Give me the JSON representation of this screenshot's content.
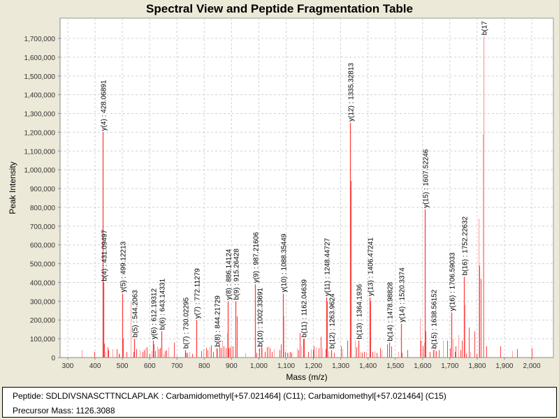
{
  "chart_data": {
    "type": "bar",
    "title": "Spectral View and Peptide Fragmentation Table",
    "xlabel": "Mass (m/z)",
    "ylabel": "Peak Intensity",
    "xlim": [
      270,
      2075
    ],
    "ylim": [
      0,
      1810000
    ],
    "grid": true,
    "legend": "none",
    "x_ticks": [
      300,
      400,
      500,
      600,
      700,
      800,
      900,
      1000,
      1100,
      1200,
      1300,
      1400,
      1500,
      1600,
      1700,
      1800,
      1900,
      2000
    ],
    "x_tick_labels": [
      "300",
      "400",
      "500",
      "600",
      "700",
      "800",
      "900",
      "1,000",
      "1,100",
      "1,200",
      "1,300",
      "1,400",
      "1,500",
      "1,600",
      "1,700",
      "1,800",
      "1,900",
      "2,000"
    ],
    "y_ticks": [
      0,
      100000,
      200000,
      300000,
      400000,
      500000,
      600000,
      700000,
      800000,
      900000,
      1000000,
      1100000,
      1200000,
      1300000,
      1400000,
      1500000,
      1600000,
      1700000
    ],
    "y_tick_labels": [
      "0",
      "100,000",
      "200,000",
      "300,000",
      "400,000",
      "500,000",
      "600,000",
      "700,000",
      "800,000",
      "900,000",
      "1,000,000",
      "1,100,000",
      "1,200,000",
      "1,300,000",
      "1,400,000",
      "1,500,000",
      "1,600,000",
      "1,700,000"
    ],
    "peak_color": "#ff4040",
    "peak_color_light": "#ffa0a0",
    "annotated_peaks": [
      {
        "ion": "y(4)",
        "mz": 428.06891,
        "intensity": 1200000,
        "label": "y(4) : 428.06891"
      },
      {
        "ion": "b(4)",
        "mz": 431.09497,
        "intensity": 400000,
        "label": "b(4) : 431.09497"
      },
      {
        "ion": "y(5)",
        "mz": 499.12213,
        "intensity": 340000,
        "label": "y(5) : 499.12213"
      },
      {
        "ion": "b(5)",
        "mz": 544.2063,
        "intensity": 100000,
        "label": "b(5) : 544.2063"
      },
      {
        "ion": "y(6)",
        "mz": 612.19312,
        "intensity": 90000,
        "label": "y(6) : 612.19312"
      },
      {
        "ion": "b(6)",
        "mz": 643.14331,
        "intensity": 140000,
        "label": "b(6) : 643.14331"
      },
      {
        "ion": "b(7)",
        "mz": 730.02295,
        "intensity": 40000,
        "label": "b(7) : 730.02295"
      },
      {
        "ion": "y(7)",
        "mz": 772.11279,
        "intensity": 200000,
        "label": "y(7) : 772.11279"
      },
      {
        "ion": "b(8)",
        "mz": 844.21729,
        "intensity": 50000,
        "label": "b(8) : 844.21729"
      },
      {
        "ion": "y(8)",
        "mz": 886.14124,
        "intensity": 300000,
        "label": "y(8) : 886.14124"
      },
      {
        "ion": "b(9)",
        "mz": 915.26428,
        "intensity": 300000,
        "label": "b(9) : 915.26428"
      },
      {
        "ion": "y(9)",
        "mz": 987.21606,
        "intensity": 390000,
        "label": "y(9) : 987.21606"
      },
      {
        "ion": "b(10)",
        "mz": 1002.33691,
        "intensity": 50000,
        "label": "b(10) : 1002.33691"
      },
      {
        "ion": "y(10)",
        "mz": 1088.35449,
        "intensity": 340000,
        "label": "y(10) : 1088.35449"
      },
      {
        "ion": "b(11)",
        "mz": 1162.04639,
        "intensity": 100000,
        "label": "b(11) : 1162.04639"
      },
      {
        "ion": "y(11)",
        "mz": 1248.44727,
        "intensity": 320000,
        "label": "y(11) : 1248.44727"
      },
      {
        "ion": "b(12)",
        "mz": 1263.9624,
        "intensity": 40000,
        "label": "b(12) : 1263.9624"
      },
      {
        "ion": "y(12)",
        "mz": 1335.32813,
        "intensity": 1250000,
        "label": "y(12) : 1335.32813"
      },
      {
        "ion": "b(13)",
        "mz": 1364.1936,
        "intensity": 90000,
        "label": "b(13) : 1364.1936"
      },
      {
        "ion": "y(13)",
        "mz": 1406.47241,
        "intensity": 320000,
        "label": "y(13) : 1406.47241"
      },
      {
        "ion": "b(14)",
        "mz": 1478.98828,
        "intensity": 80000,
        "label": "b(14) : 1478.98828"
      },
      {
        "ion": "y(14)",
        "mz": 1520.3374,
        "intensity": 180000,
        "label": "y(14) : 1520.3374"
      },
      {
        "ion": "y(15)",
        "mz": 1607.52246,
        "intensity": 790000,
        "label": "y(15) : 1607.52246"
      },
      {
        "ion": "b(15)",
        "mz": 1638.56152,
        "intensity": 40000,
        "label": "b(15) : 1638.56152"
      },
      {
        "ion": "y(16)",
        "mz": 1706.59033,
        "intensity": 240000,
        "label": "y(16) : 1706.59033"
      },
      {
        "ion": "b(16)",
        "mz": 1752.22632,
        "intensity": 430000,
        "label": "b(16) : 1752.22632"
      },
      {
        "ion": "b(17)",
        "mz": 1824.5,
        "intensity": 1710000,
        "label": "b(17"
      }
    ],
    "other_peaks": [
      {
        "mz": 352,
        "intensity": 40000
      },
      {
        "mz": 398,
        "intensity": 30000
      },
      {
        "mz": 433,
        "intensity": 75000
      },
      {
        "mz": 437,
        "intensity": 30000
      },
      {
        "mz": 445,
        "intensity": 55000
      },
      {
        "mz": 448,
        "intensity": 40000
      },
      {
        "mz": 465,
        "intensity": 45000
      },
      {
        "mz": 478,
        "intensity": 45000
      },
      {
        "mz": 486,
        "intensity": 20000
      },
      {
        "mz": 490,
        "intensity": 18000
      },
      {
        "mz": 501,
        "intensity": 100000
      },
      {
        "mz": 516,
        "intensity": 30000
      },
      {
        "mz": 530,
        "intensity": 300000
      },
      {
        "mz": 540,
        "intensity": 30000
      },
      {
        "mz": 552,
        "intensity": 45000
      },
      {
        "mz": 564,
        "intensity": 40000
      },
      {
        "mz": 573,
        "intensity": 30000
      },
      {
        "mz": 580,
        "intensity": 40000
      },
      {
        "mz": 585,
        "intensity": 50000
      },
      {
        "mz": 590,
        "intensity": 55000
      },
      {
        "mz": 600,
        "intensity": 20000
      },
      {
        "mz": 606,
        "intensity": 35000
      },
      {
        "mz": 614,
        "intensity": 70000
      },
      {
        "mz": 619,
        "intensity": 35000
      },
      {
        "mz": 627,
        "intensity": 60000
      },
      {
        "mz": 632,
        "intensity": 45000
      },
      {
        "mz": 637,
        "intensity": 50000
      },
      {
        "mz": 650,
        "intensity": 20000
      },
      {
        "mz": 655,
        "intensity": 35000
      },
      {
        "mz": 660,
        "intensity": 40000
      },
      {
        "mz": 668,
        "intensity": 55000
      },
      {
        "mz": 688,
        "intensity": 60000
      },
      {
        "mz": 690,
        "intensity": 80000
      },
      {
        "mz": 699,
        "intensity": 15000
      },
      {
        "mz": 733,
        "intensity": 25000
      },
      {
        "mz": 738,
        "intensity": 25000
      },
      {
        "mz": 745,
        "intensity": 30000
      },
      {
        "mz": 757,
        "intensity": 20000
      },
      {
        "mz": 790,
        "intensity": 35000
      },
      {
        "mz": 797,
        "intensity": 45000
      },
      {
        "mz": 808,
        "intensity": 50000
      },
      {
        "mz": 812,
        "intensity": 40000
      },
      {
        "mz": 820,
        "intensity": 55000
      },
      {
        "mz": 826,
        "intensity": 65000
      },
      {
        "mz": 833,
        "intensity": 30000
      },
      {
        "mz": 849,
        "intensity": 45000
      },
      {
        "mz": 855,
        "intensity": 60000
      },
      {
        "mz": 860,
        "intensity": 50000
      },
      {
        "mz": 865,
        "intensity": 90000
      },
      {
        "mz": 870,
        "intensity": 60000
      },
      {
        "mz": 878,
        "intensity": 50000
      },
      {
        "mz": 883,
        "intensity": 130000
      },
      {
        "mz": 889,
        "intensity": 50000
      },
      {
        "mz": 893,
        "intensity": 55000
      },
      {
        "mz": 898,
        "intensity": 60000
      },
      {
        "mz": 903,
        "intensity": 60000
      },
      {
        "mz": 920,
        "intensity": 220000
      },
      {
        "mz": 950,
        "intensity": 25000
      },
      {
        "mz": 990,
        "intensity": 25000
      },
      {
        "mz": 1008,
        "intensity": 60000
      },
      {
        "mz": 1013,
        "intensity": 50000
      },
      {
        "mz": 1022,
        "intensity": 30000
      },
      {
        "mz": 1030,
        "intensity": 55000
      },
      {
        "mz": 1035,
        "intensity": 60000
      },
      {
        "mz": 1041,
        "intensity": 50000
      },
      {
        "mz": 1048,
        "intensity": 30000
      },
      {
        "mz": 1056,
        "intensity": 45000
      },
      {
        "mz": 1076,
        "intensity": 40000
      },
      {
        "mz": 1080,
        "intensity": 70000
      },
      {
        "mz": 1090,
        "intensity": 220000
      },
      {
        "mz": 1097,
        "intensity": 30000
      },
      {
        "mz": 1103,
        "intensity": 25000
      },
      {
        "mz": 1110,
        "intensity": 25000
      },
      {
        "mz": 1115,
        "intensity": 30000
      },
      {
        "mz": 1120,
        "intensity": 25000
      },
      {
        "mz": 1140,
        "intensity": 50000
      },
      {
        "mz": 1145,
        "intensity": 40000
      },
      {
        "mz": 1150,
        "intensity": 130000
      },
      {
        "mz": 1155,
        "intensity": 60000
      },
      {
        "mz": 1166,
        "intensity": 100000
      },
      {
        "mz": 1180,
        "intensity": 30000
      },
      {
        "mz": 1190,
        "intensity": 45000
      },
      {
        "mz": 1198,
        "intensity": 40000
      },
      {
        "mz": 1202,
        "intensity": 60000
      },
      {
        "mz": 1210,
        "intensity": 55000
      },
      {
        "mz": 1218,
        "intensity": 50000
      },
      {
        "mz": 1226,
        "intensity": 110000
      },
      {
        "mz": 1232,
        "intensity": 50000
      },
      {
        "mz": 1245,
        "intensity": 45000
      },
      {
        "mz": 1250,
        "intensity": 300000
      },
      {
        "mz": 1255,
        "intensity": 35000
      },
      {
        "mz": 1275,
        "intensity": 25000
      },
      {
        "mz": 1300,
        "intensity": 60000
      },
      {
        "mz": 1305,
        "intensity": 45000
      },
      {
        "mz": 1325,
        "intensity": 90000
      },
      {
        "mz": 1337,
        "intensity": 940000
      },
      {
        "mz": 1352,
        "intensity": 90000
      },
      {
        "mz": 1357,
        "intensity": 55000
      },
      {
        "mz": 1366,
        "intensity": 30000
      },
      {
        "mz": 1372,
        "intensity": 30000
      },
      {
        "mz": 1378,
        "intensity": 25000
      },
      {
        "mz": 1385,
        "intensity": 30000
      },
      {
        "mz": 1393,
        "intensity": 30000
      },
      {
        "mz": 1409,
        "intensity": 300000
      },
      {
        "mz": 1415,
        "intensity": 30000
      },
      {
        "mz": 1425,
        "intensity": 35000
      },
      {
        "mz": 1432,
        "intensity": 25000
      },
      {
        "mz": 1445,
        "intensity": 50000
      },
      {
        "mz": 1450,
        "intensity": 40000
      },
      {
        "mz": 1470,
        "intensity": 70000
      },
      {
        "mz": 1485,
        "intensity": 60000
      },
      {
        "mz": 1510,
        "intensity": 30000
      },
      {
        "mz": 1525,
        "intensity": 25000
      },
      {
        "mz": 1545,
        "intensity": 40000
      },
      {
        "mz": 1590,
        "intensity": 210000
      },
      {
        "mz": 1594,
        "intensity": 90000
      },
      {
        "mz": 1600,
        "intensity": 60000
      },
      {
        "mz": 1605,
        "intensity": 80000
      },
      {
        "mz": 1610,
        "intensity": 140000
      },
      {
        "mz": 1625,
        "intensity": 30000
      },
      {
        "mz": 1645,
        "intensity": 50000
      },
      {
        "mz": 1650,
        "intensity": 35000
      },
      {
        "mz": 1660,
        "intensity": 40000
      },
      {
        "mz": 1675,
        "intensity": 90000
      },
      {
        "mz": 1690,
        "intensity": 90000
      },
      {
        "mz": 1700,
        "intensity": 50000
      },
      {
        "mz": 1710,
        "intensity": 100000
      },
      {
        "mz": 1718,
        "intensity": 30000
      },
      {
        "mz": 1722,
        "intensity": 60000
      },
      {
        "mz": 1730,
        "intensity": 120000
      },
      {
        "mz": 1738,
        "intensity": 40000
      },
      {
        "mz": 1745,
        "intensity": 90000
      },
      {
        "mz": 1755,
        "intensity": 280000
      },
      {
        "mz": 1760,
        "intensity": 20000
      },
      {
        "mz": 1770,
        "intensity": 160000
      },
      {
        "mz": 1775,
        "intensity": 30000
      },
      {
        "mz": 1790,
        "intensity": 140000
      },
      {
        "mz": 1797,
        "intensity": 20000
      },
      {
        "mz": 1806,
        "intensity": 740000
      },
      {
        "mz": 1808,
        "intensity": 490000
      },
      {
        "mz": 1812,
        "intensity": 420000
      },
      {
        "mz": 1820,
        "intensity": 1190000
      },
      {
        "mz": 1833,
        "intensity": 60000
      },
      {
        "mz": 1885,
        "intensity": 60000
      },
      {
        "mz": 1928,
        "intensity": 35000
      },
      {
        "mz": 1945,
        "intensity": 45000
      },
      {
        "mz": 2000,
        "intensity": 50000
      }
    ]
  },
  "info_panel": {
    "peptide_line": "Peptide: SDLDIVSNASCTTNCLAPLAK : Carbamidomethyl[+57.021464] (C11); Carbamidomethyl[+57.021464] (C15)",
    "precursor_line": "Precursor Mass: 1126.3088"
  }
}
